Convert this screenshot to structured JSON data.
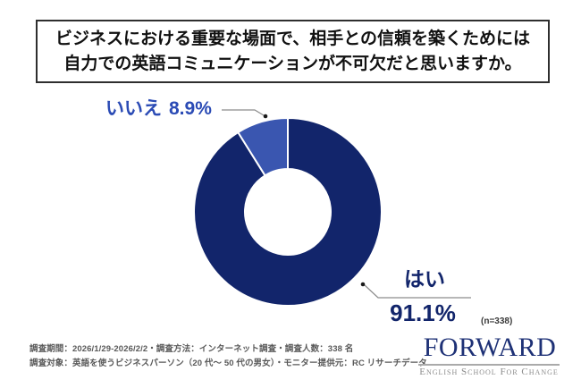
{
  "title": {
    "line1": "ビジネスにおける重要な場面で、相手との信頼を築くためには",
    "line2": "自力での英語コミュニケーションが不可欠だと思いますか。"
  },
  "chart_data": {
    "type": "pie",
    "donut": true,
    "title": "ビジネスにおける重要な場面で、相手との信頼を築くためには自力での英語コミュニケーションが不可欠だと思いますか。",
    "categories": [
      "はい",
      "いいえ"
    ],
    "values": [
      91.1,
      8.9
    ],
    "unit": "%",
    "colors": [
      "#12256b",
      "#3a56b0"
    ],
    "start_angle_deg": 0,
    "direction": "clockwise",
    "inner_radius_ratio": 0.46,
    "legend_position": "none",
    "sample_note": "(n=338)",
    "data_labels": [
      {
        "category": "はい",
        "text": "はい",
        "value_text": "91.1%"
      },
      {
        "category": "いいえ",
        "text": "いいえ",
        "value_text": "8.9%"
      }
    ]
  },
  "footer": {
    "line1": "調査期間：2026/1/29-2026/2/2・調査方法：インターネット調査・調査人数：338 名",
    "line2": "調査対象：英語を使うビジネスパーソン（20 代〜 50 代の男女）・モニター提供元：RC リサーチデータ"
  },
  "logo": {
    "name": "FORWARD",
    "tagline": "English School For Change"
  },
  "colors": {
    "navy": "#12256b",
    "royal_blue": "#3a56b0",
    "label_blue": "#2b4bb5",
    "leader_line": "#8c8c8c",
    "leader_dot": "#1a1a1a"
  }
}
